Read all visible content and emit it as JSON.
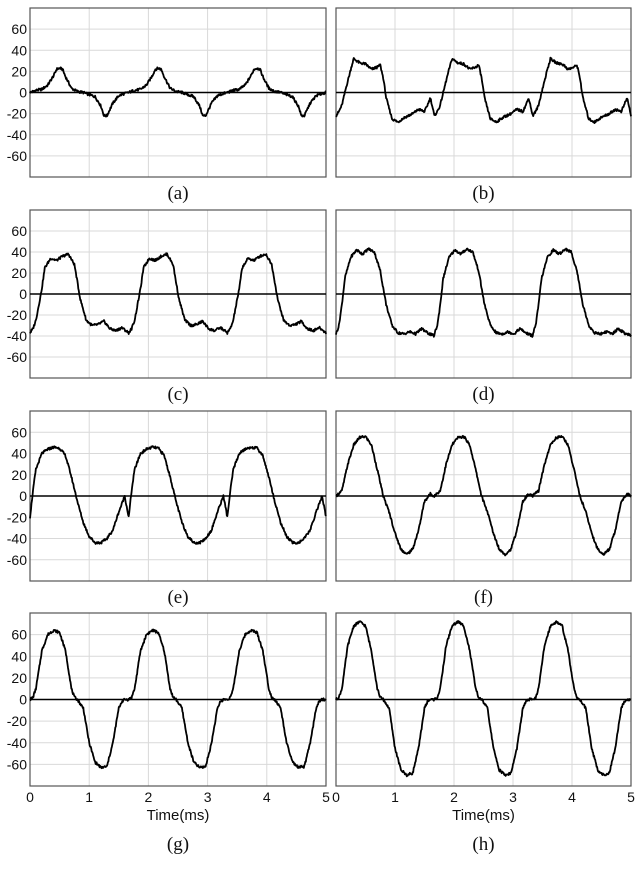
{
  "figure": {
    "y_ticks": [
      "60",
      "40",
      "20",
      "0",
      "-20",
      "-40",
      "-60"
    ],
    "x_ticks": [
      "0",
      "1",
      "2",
      "3",
      "4",
      "5"
    ],
    "xlabel": "Time(ms)",
    "colors": {
      "line": "#000000",
      "grid": "#d9d9d9",
      "frame": "#555555"
    }
  },
  "chart_data": [
    {
      "type": "line",
      "label": "(a)",
      "x_unit": "ms",
      "xlim": [
        0,
        5
      ],
      "ylim": [
        -80,
        80
      ],
      "period_ms": 1.667,
      "peak": 23,
      "trough": -23,
      "x": [
        0,
        0.1,
        0.2,
        0.3,
        0.4,
        0.45,
        0.5,
        0.55,
        0.6,
        0.7,
        0.8,
        0.9,
        1.0,
        1.1,
        1.2,
        1.25,
        1.3,
        1.4,
        1.5,
        1.6,
        1.667
      ],
      "y": [
        0,
        2,
        3,
        7,
        16,
        22,
        23,
        22,
        15,
        4,
        1,
        0,
        -2,
        -4,
        -13,
        -22,
        -22,
        -10,
        -3,
        -1,
        0
      ]
    },
    {
      "type": "line",
      "label": "(b)",
      "x_unit": "ms",
      "xlim": [
        0,
        5
      ],
      "ylim": [
        -80,
        80
      ],
      "period_ms": 1.667,
      "peak": 32,
      "trough": -30,
      "x": [
        0,
        0.05,
        0.1,
        0.15,
        0.25,
        0.3,
        0.4,
        0.5,
        0.6,
        0.7,
        0.75,
        0.8,
        0.85,
        0.95,
        1.05,
        1.15,
        1.3,
        1.4,
        1.5,
        1.55,
        1.6,
        1.667
      ],
      "y": [
        -22,
        -18,
        -12,
        0,
        22,
        32,
        28,
        27,
        22,
        24,
        26,
        14,
        -5,
        -25,
        -28,
        -24,
        -20,
        -16,
        -18,
        -12,
        -5,
        -22
      ]
    },
    {
      "type": "line",
      "label": "(c)",
      "x_unit": "ms",
      "xlim": [
        0,
        5
      ],
      "ylim": [
        -80,
        80
      ],
      "period_ms": 1.667,
      "peak": 38,
      "trough": -37,
      "x": [
        0,
        0.05,
        0.1,
        0.2,
        0.25,
        0.35,
        0.45,
        0.55,
        0.65,
        0.75,
        0.85,
        0.95,
        1.05,
        1.15,
        1.25,
        1.35,
        1.45,
        1.55,
        1.667
      ],
      "y": [
        -37,
        -33,
        -25,
        5,
        25,
        34,
        32,
        36,
        38,
        28,
        -5,
        -25,
        -30,
        -29,
        -26,
        -33,
        -35,
        -32,
        -37
      ]
    },
    {
      "type": "line",
      "label": "(d)",
      "x_unit": "ms",
      "xlim": [
        0,
        5
      ],
      "ylim": [
        -80,
        80
      ],
      "period_ms": 1.667,
      "peak": 45,
      "trough": -42,
      "x": [
        0,
        0.05,
        0.1,
        0.15,
        0.25,
        0.35,
        0.45,
        0.55,
        0.65,
        0.75,
        0.85,
        0.95,
        1.05,
        1.15,
        1.25,
        1.35,
        1.45,
        1.55,
        1.667
      ],
      "y": [
        -38,
        -30,
        -10,
        15,
        35,
        42,
        38,
        43,
        40,
        22,
        -10,
        -30,
        -37,
        -38,
        -36,
        -38,
        -33,
        -37,
        -40
      ]
    },
    {
      "type": "line",
      "label": "(e)",
      "x_unit": "ms",
      "xlim": [
        0,
        5
      ],
      "ylim": [
        -80,
        80
      ],
      "period_ms": 1.667,
      "peak": 47,
      "trough": -45,
      "x": [
        0,
        0.05,
        0.1,
        0.2,
        0.3,
        0.4,
        0.5,
        0.6,
        0.7,
        0.8,
        0.9,
        1.0,
        1.1,
        1.2,
        1.3,
        1.4,
        1.5,
        1.6,
        1.667
      ],
      "y": [
        -20,
        5,
        25,
        40,
        44,
        46,
        45,
        38,
        18,
        -5,
        -25,
        -38,
        -44,
        -44,
        -40,
        -32,
        -15,
        0,
        -20
      ]
    },
    {
      "type": "line",
      "label": "(f)",
      "x_unit": "ms",
      "xlim": [
        0,
        5
      ],
      "ylim": [
        -80,
        80
      ],
      "period_ms": 1.667,
      "peak": 57,
      "trough": -56,
      "x": [
        0,
        0.1,
        0.2,
        0.3,
        0.4,
        0.5,
        0.6,
        0.7,
        0.8,
        0.9,
        1.0,
        1.1,
        1.2,
        1.3,
        1.4,
        1.5,
        1.6,
        1.667
      ],
      "y": [
        0,
        5,
        30,
        48,
        55,
        56,
        48,
        25,
        0,
        -15,
        -35,
        -50,
        -55,
        -50,
        -32,
        -5,
        2,
        0
      ]
    },
    {
      "type": "line",
      "label": "(g)",
      "x_unit": "ms",
      "xlim": [
        0,
        5
      ],
      "ylim": [
        -80,
        80
      ],
      "period_ms": 1.667,
      "peak": 64,
      "trough": -63,
      "x": [
        0,
        0.05,
        0.1,
        0.2,
        0.3,
        0.4,
        0.5,
        0.6,
        0.7,
        0.75,
        0.8,
        0.9,
        1.0,
        1.1,
        1.2,
        1.3,
        1.4,
        1.5,
        1.55,
        1.6,
        1.667
      ],
      "y": [
        0,
        2,
        10,
        45,
        60,
        64,
        62,
        45,
        10,
        2,
        0,
        -8,
        -40,
        -58,
        -63,
        -62,
        -40,
        -8,
        -2,
        0,
        0
      ]
    },
    {
      "type": "line",
      "label": "(h)",
      "x_unit": "ms",
      "xlim": [
        0,
        5
      ],
      "ylim": [
        -80,
        80
      ],
      "period_ms": 1.667,
      "peak": 72,
      "trough": -70,
      "x": [
        0,
        0.05,
        0.1,
        0.2,
        0.3,
        0.4,
        0.5,
        0.6,
        0.7,
        0.75,
        0.8,
        0.9,
        1.0,
        1.1,
        1.2,
        1.3,
        1.4,
        1.5,
        1.55,
        1.6,
        1.667
      ],
      "y": [
        0,
        2,
        10,
        50,
        68,
        72,
        68,
        45,
        10,
        2,
        0,
        -8,
        -45,
        -65,
        -70,
        -68,
        -45,
        -8,
        -2,
        0,
        0
      ]
    }
  ]
}
